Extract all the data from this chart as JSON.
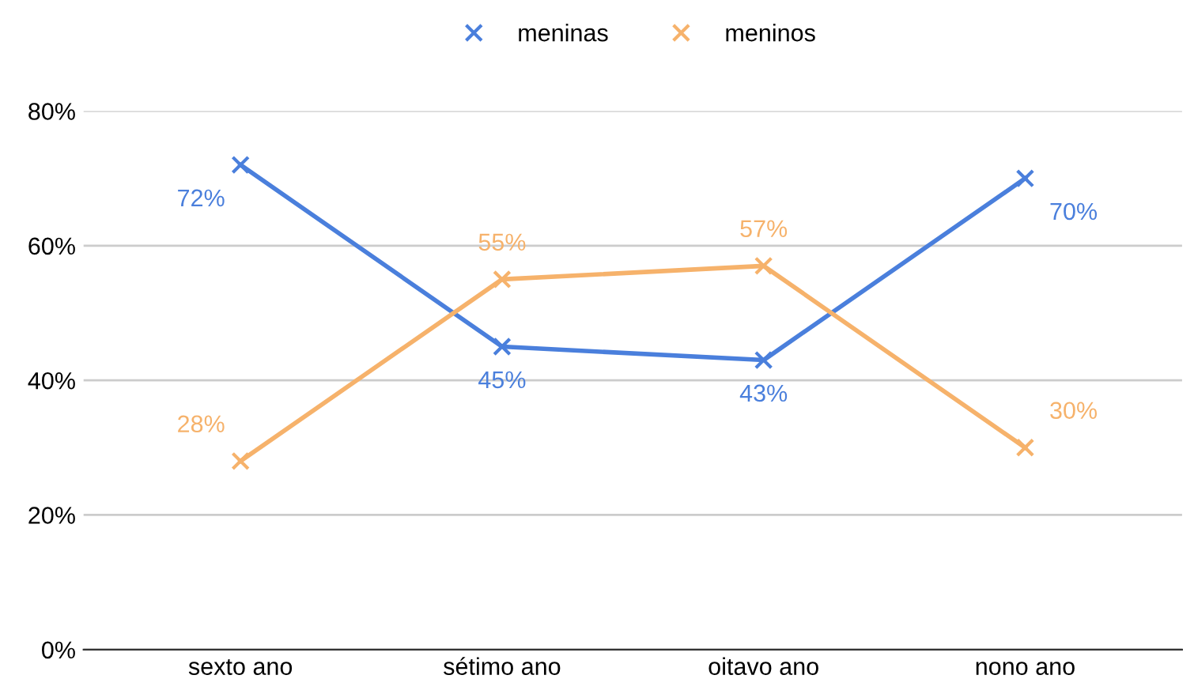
{
  "chart_data": {
    "type": "line",
    "categories": [
      "sexto ano",
      "sétimo ano",
      "oitavo ano",
      "nono ano"
    ],
    "series": [
      {
        "name": "meninas",
        "color": "#4a7fdc",
        "values": [
          72,
          45,
          43,
          70
        ],
        "value_labels": [
          "72%",
          "45%",
          "43%",
          "70%"
        ]
      },
      {
        "name": "meninos",
        "color": "#f6b26b",
        "values": [
          28,
          55,
          57,
          30
        ],
        "value_labels": [
          "28%",
          "55%",
          "57%",
          "30%"
        ]
      }
    ],
    "ylim": [
      0,
      80
    ],
    "yticks": [
      {
        "value": 0,
        "label": "0%"
      },
      {
        "value": 20,
        "label": "20%"
      },
      {
        "value": 40,
        "label": "40%"
      },
      {
        "value": 60,
        "label": "60%"
      },
      {
        "value": 80,
        "label": "80%"
      }
    ],
    "grid": "y",
    "legend": "top",
    "marker": "cross",
    "line_style": "solid"
  }
}
